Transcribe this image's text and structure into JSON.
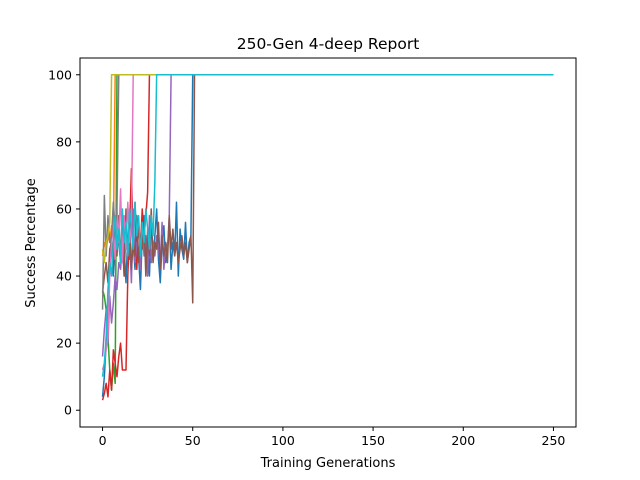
{
  "chart_data": {
    "type": "line",
    "title": "250-Gen 4-deep Report",
    "xlabel": "Training Generations",
    "ylabel": "Success Percentage",
    "xlim": [
      -12.5,
      262.5
    ],
    "ylim": [
      -5,
      105
    ],
    "xticks": [
      0,
      50,
      100,
      150,
      200,
      250
    ],
    "yticks": [
      0,
      20,
      40,
      60,
      80,
      100
    ],
    "grid": false,
    "legend": "none",
    "series": [
      {
        "color": "#1f77b4",
        "values": [
          4,
          10,
          20,
          32,
          46,
          52,
          40,
          48,
          58,
          50,
          44,
          55,
          48,
          38,
          52,
          45,
          60,
          50,
          42,
          55,
          46,
          36,
          52,
          58,
          44,
          50,
          40,
          56,
          47,
          52,
          60,
          45,
          38,
          50,
          55,
          44,
          48,
          56,
          42,
          50,
          46,
          62,
          40,
          54,
          48,
          45,
          56,
          44,
          50,
          52,
          100
        ]
      },
      {
        "color": "#ff7f0e",
        "values": [
          46,
          50,
          48,
          52,
          50,
          55,
          52,
          100
        ]
      },
      {
        "color": "#2ca02c",
        "values": [
          36,
          34,
          30,
          22,
          12,
          6,
          14,
          8,
          100
        ]
      },
      {
        "color": "#d62728",
        "values": [
          3,
          5,
          8,
          4,
          12,
          6,
          18,
          14,
          10,
          16,
          20,
          12,
          12,
          12,
          40,
          54,
          72,
          50,
          62,
          42,
          56,
          48,
          60,
          52,
          58,
          65,
          100
        ]
      },
      {
        "color": "#9467bd",
        "values": [
          16,
          24,
          30,
          20,
          34,
          26,
          32,
          40,
          36,
          44,
          42,
          50,
          40,
          56,
          46,
          52,
          38,
          60,
          44,
          50,
          48,
          42,
          55,
          46,
          52,
          40,
          58,
          44,
          50,
          46,
          52,
          48,
          44,
          56,
          42,
          50,
          48,
          58,
          100
        ]
      },
      {
        "color": "#8c564b",
        "values": [
          35,
          40,
          44,
          38,
          48,
          50,
          42,
          55,
          46,
          58,
          44,
          52,
          40,
          60,
          48,
          54,
          42,
          50,
          46,
          58,
          44,
          52,
          48,
          56,
          40,
          54,
          46,
          60,
          44,
          50,
          48,
          56,
          42,
          52,
          46,
          50,
          44,
          58,
          48,
          54,
          46,
          50,
          44,
          48,
          52,
          46,
          50,
          44,
          48,
          52,
          32,
          100
        ]
      },
      {
        "color": "#e377c2",
        "values": [
          12,
          14,
          18,
          22,
          40,
          50,
          55,
          45,
          60,
          50,
          66,
          44,
          58,
          48,
          62,
          50,
          56,
          100
        ]
      },
      {
        "color": "#7f7f7f",
        "values": [
          30,
          64,
          46,
          58,
          50,
          52,
          62,
          54,
          60,
          100
        ]
      },
      {
        "color": "#bcbd22",
        "values": [
          48,
          44,
          50,
          52,
          56,
          100
        ]
      },
      {
        "color": "#17becf",
        "values": [
          10,
          14,
          22,
          36,
          44,
          40,
          50,
          58,
          48,
          54,
          44,
          60,
          50,
          56,
          46,
          60,
          54,
          48,
          62,
          52,
          58,
          46,
          56,
          50,
          60,
          54,
          48,
          58,
          52,
          68,
          100
        ]
      }
    ],
    "final_x": 250,
    "final_y": 100
  }
}
